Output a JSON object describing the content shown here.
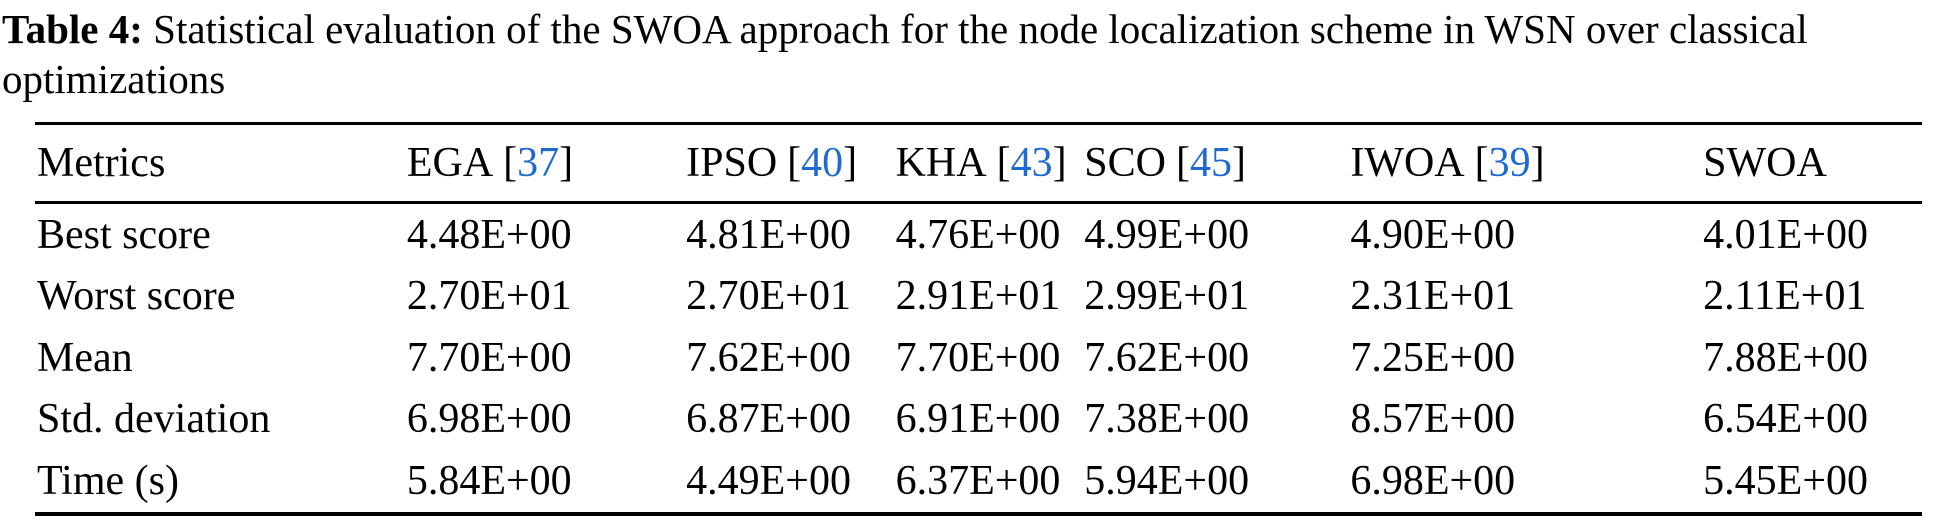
{
  "caption": {
    "label": "Table 4:",
    "text": "Statistical evaluation of the SWOA approach for the node localization scheme in WSN over classical optimizations"
  },
  "punct": {
    "open": "[",
    "close": "]"
  },
  "colors": {
    "citation_blue": "#1e69d2",
    "text": "#000000",
    "rule": "#000000"
  },
  "table": {
    "columns": [
      {
        "label": "Metrics",
        "ref": null
      },
      {
        "label": "EGA",
        "ref": "37"
      },
      {
        "label": "IPSO",
        "ref": "40"
      },
      {
        "label": "KHA",
        "ref": "43"
      },
      {
        "label": "SCO",
        "ref": "45"
      },
      {
        "label": "IWOA",
        "ref": "39"
      },
      {
        "label": "SWOA",
        "ref": null
      }
    ],
    "rows": [
      {
        "metric": "Best score",
        "values": [
          "4.48E+00",
          "4.81E+00",
          "4.76E+00",
          "4.99E+00",
          "4.90E+00",
          "4.01E+00"
        ]
      },
      {
        "metric": "Worst score",
        "values": [
          "2.70E+01",
          "2.70E+01",
          "2.91E+01",
          "2.99E+01",
          "2.31E+01",
          "2.11E+01"
        ]
      },
      {
        "metric": "Mean",
        "values": [
          "7.70E+00",
          "7.62E+00",
          "7.70E+00",
          "7.62E+00",
          "7.25E+00",
          "7.88E+00"
        ]
      },
      {
        "metric": "Std. deviation",
        "values": [
          "6.98E+00",
          "6.87E+00",
          "6.91E+00",
          "7.38E+00",
          "8.57E+00",
          "6.54E+00"
        ]
      },
      {
        "metric": "Time (s)",
        "values": [
          "5.84E+00",
          "4.49E+00",
          "6.37E+00",
          "5.94E+00",
          "6.98E+00",
          "5.45E+00"
        ]
      }
    ]
  }
}
